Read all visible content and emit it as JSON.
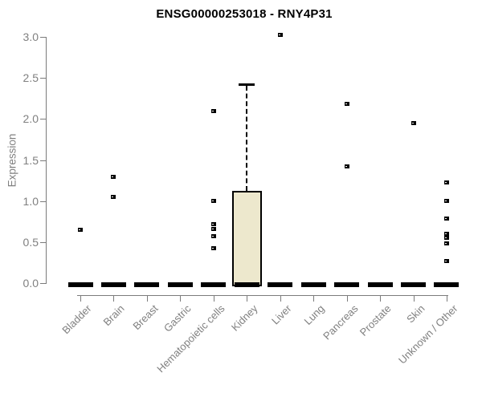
{
  "chart_data": {
    "type": "box",
    "title": "ENSG00000253018 - RNY4P31",
    "ylabel": "Expression",
    "xlabel": "",
    "ylim": [
      0,
      3.0
    ],
    "yticks": [
      "0.0",
      "0.5",
      "1.0",
      "1.5",
      "2.0",
      "2.5",
      "3.0"
    ],
    "grid": false,
    "legend": "none",
    "categories": [
      "Bladder",
      "Brain",
      "Breast",
      "Gastric",
      "Hematopoietic cells",
      "Kidney",
      "Liver",
      "Lung",
      "Pancreas",
      "Prostate",
      "Skin",
      "Unknown / Other"
    ],
    "boxes": [
      {
        "category": "Bladder",
        "median": 0,
        "q1": 0,
        "q3": 0,
        "whisker_low": 0,
        "whisker_high": 0,
        "outliers": [
          0.65
        ]
      },
      {
        "category": "Brain",
        "median": 0,
        "q1": 0,
        "q3": 0,
        "whisker_low": 0,
        "whisker_high": 0,
        "outliers": [
          1.3,
          1.06
        ]
      },
      {
        "category": "Breast",
        "median": 0,
        "q1": 0,
        "q3": 0,
        "whisker_low": 0,
        "whisker_high": 0,
        "outliers": []
      },
      {
        "category": "Gastric",
        "median": 0,
        "q1": 0,
        "q3": 0,
        "whisker_low": 0,
        "whisker_high": 0,
        "outliers": []
      },
      {
        "category": "Hematopoietic cells",
        "median": 0,
        "q1": 0,
        "q3": 0,
        "whisker_low": 0,
        "whisker_high": 0,
        "outliers": [
          2.1,
          1.01,
          0.72,
          0.66,
          0.58,
          0.43
        ]
      },
      {
        "category": "Kidney",
        "median": 0,
        "q1": 0,
        "q3": 1.12,
        "whisker_low": 0,
        "whisker_high": 2.42,
        "outliers": []
      },
      {
        "category": "Liver",
        "median": 0,
        "q1": 0,
        "q3": 0,
        "whisker_low": 0,
        "whisker_high": 0,
        "outliers": [
          3.03
        ]
      },
      {
        "category": "Lung",
        "median": 0,
        "q1": 0,
        "q3": 0,
        "whisker_low": 0,
        "whisker_high": 0,
        "outliers": []
      },
      {
        "category": "Pancreas",
        "median": 0,
        "q1": 0,
        "q3": 0,
        "whisker_low": 0,
        "whisker_high": 0,
        "outliers": [
          2.19,
          1.43
        ]
      },
      {
        "category": "Prostate",
        "median": 0,
        "q1": 0,
        "q3": 0,
        "whisker_low": 0,
        "whisker_high": 0,
        "outliers": []
      },
      {
        "category": "Skin",
        "median": 0,
        "q1": 0,
        "q3": 0,
        "whisker_low": 0,
        "whisker_high": 0,
        "outliers": [
          1.95
        ]
      },
      {
        "category": "Unknown / Other",
        "median": 0,
        "q1": 0,
        "q3": 0,
        "whisker_low": 0,
        "whisker_high": 0,
        "outliers": [
          1.23,
          1.01,
          0.79,
          0.61,
          0.56,
          0.49,
          0.27
        ]
      }
    ],
    "colors": {
      "box_fill": "#ede8cd",
      "box_border": "#000000",
      "outlier": "#000000",
      "median_line": "#000000",
      "axis": "#7b7b7b",
      "tick_label": "#808080",
      "title": "#000000",
      "background": "#ffffff"
    }
  }
}
